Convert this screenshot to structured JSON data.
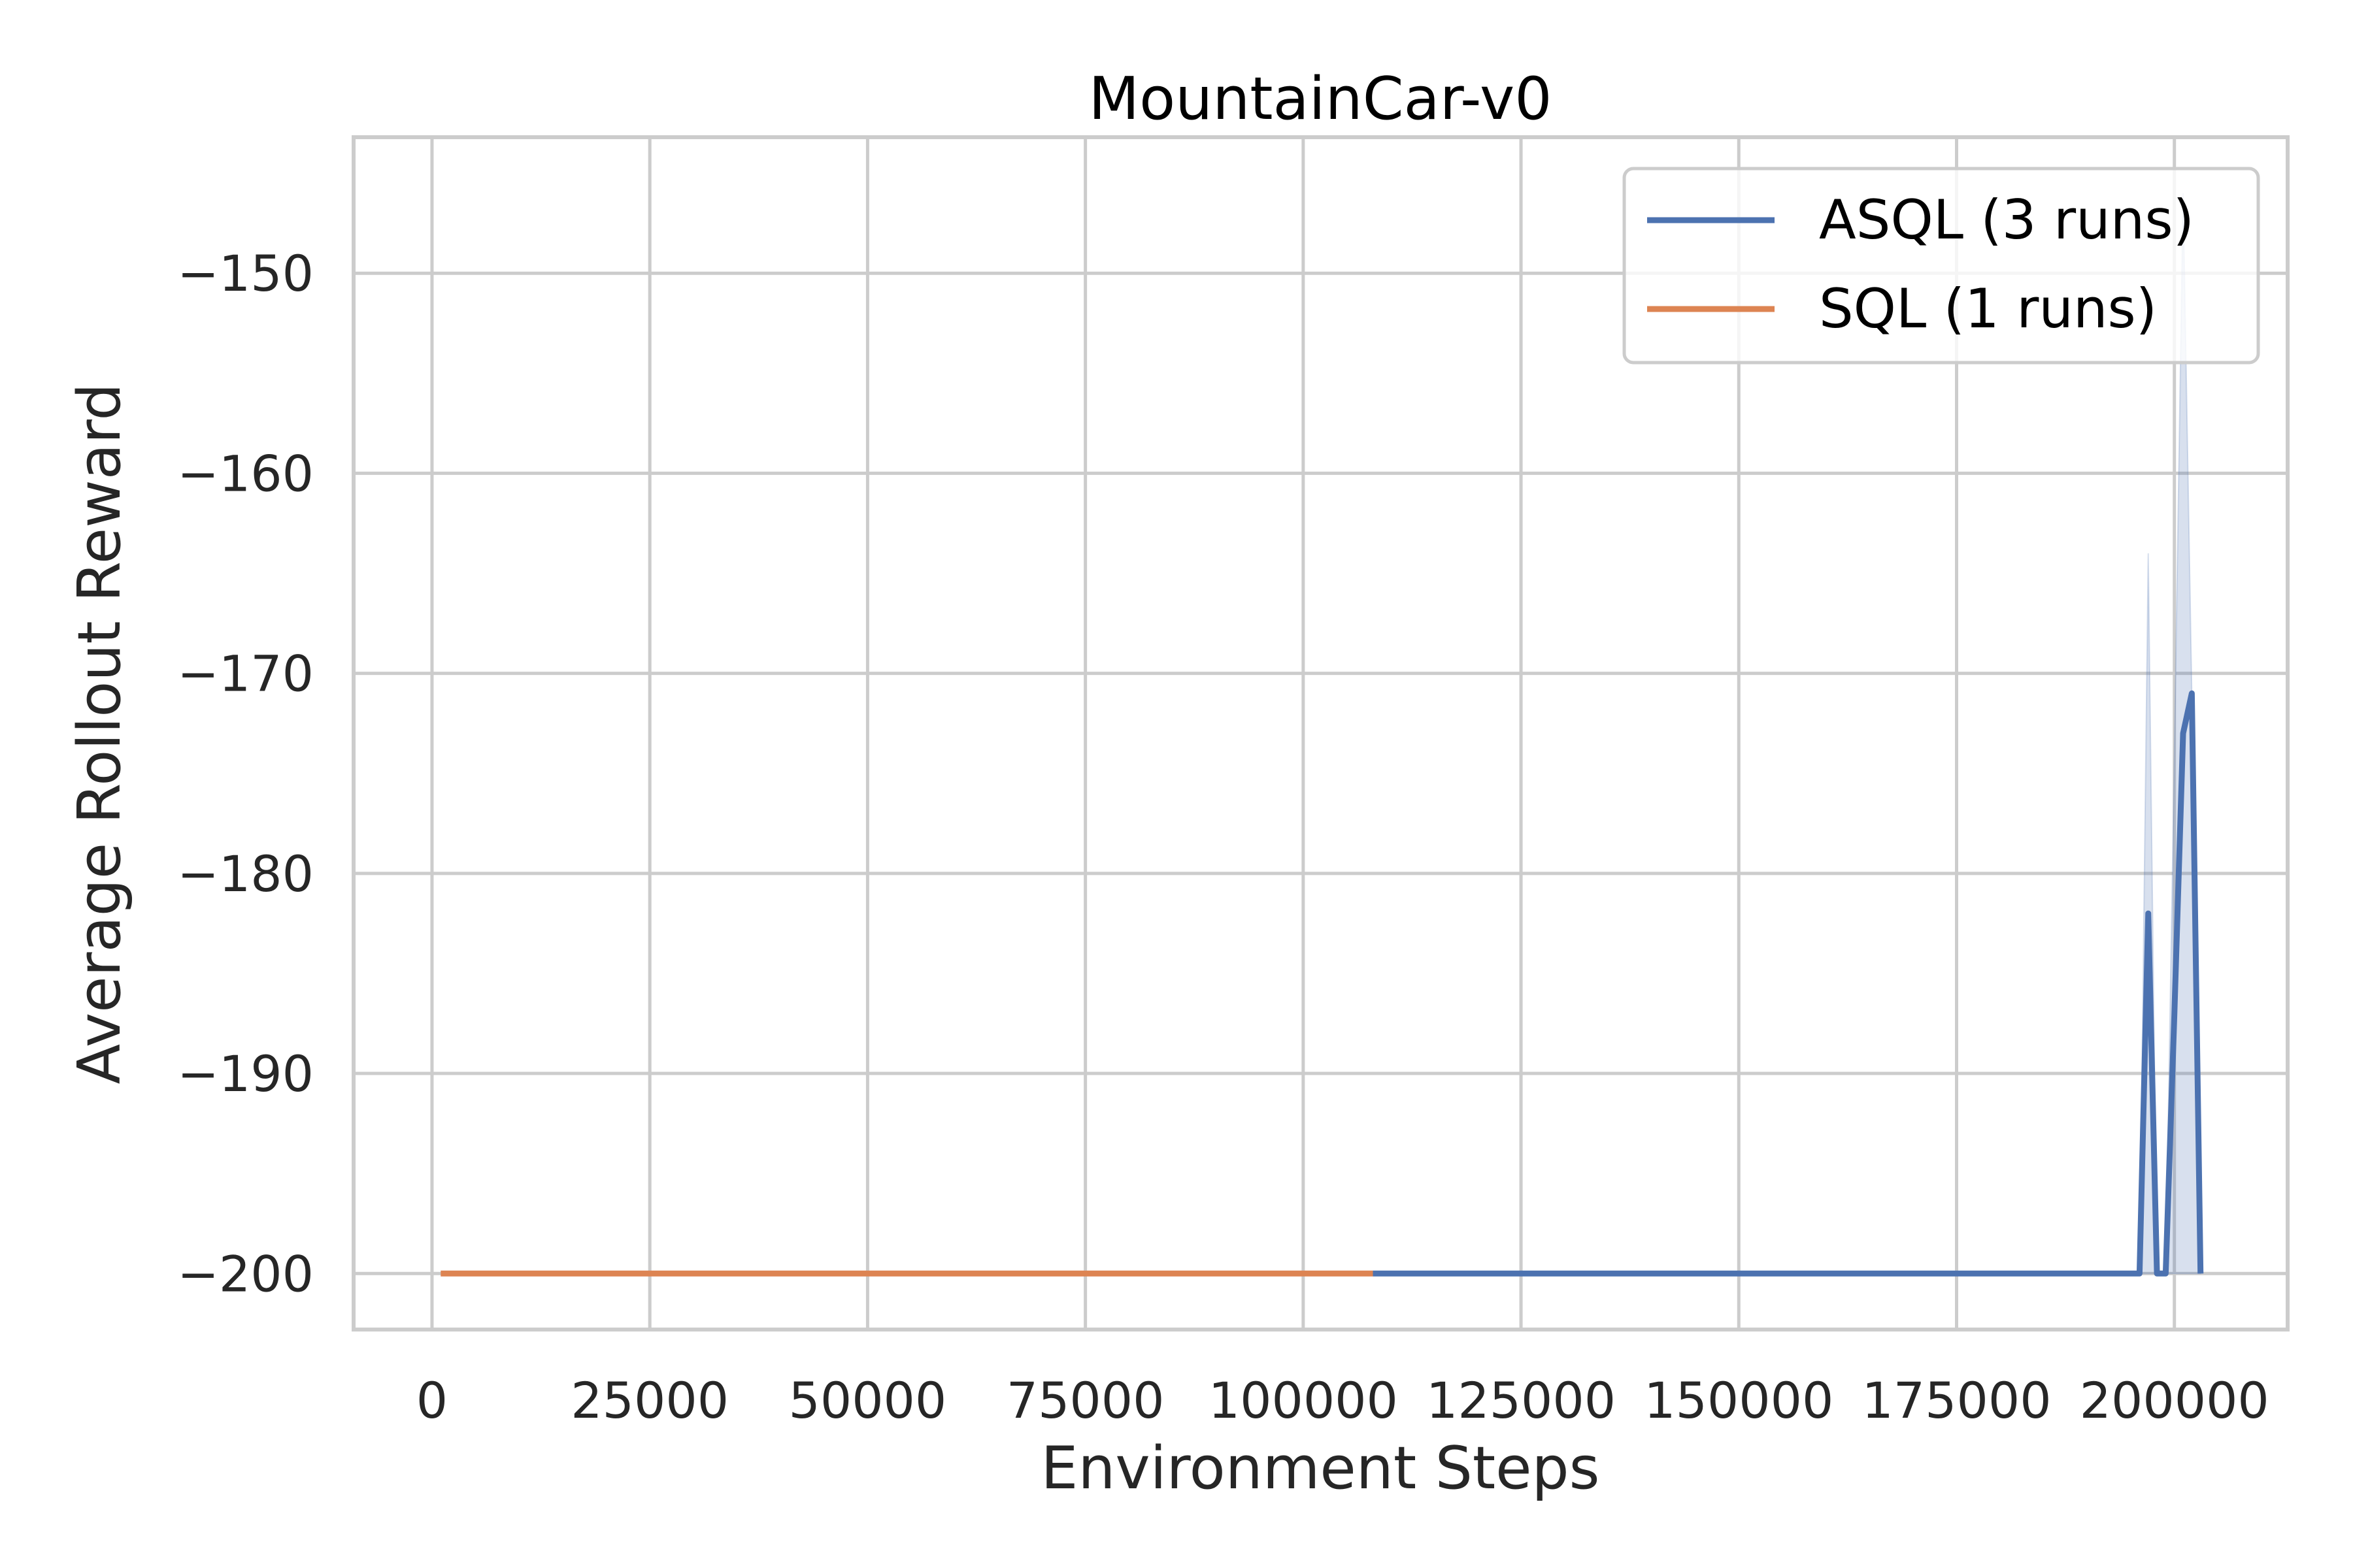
{
  "chart_data": {
    "type": "line",
    "title": "MountainCar-v0",
    "xlabel": "Environment Steps",
    "ylabel": "Average Rollout Reward",
    "xlim": [
      -9000,
      213000
    ],
    "ylim": [
      -202.8,
      -143.2
    ],
    "xticks": [
      0,
      25000,
      50000,
      75000,
      100000,
      125000,
      150000,
      175000,
      200000
    ],
    "xtick_labels": [
      "0",
      "25000",
      "50000",
      "75000",
      "100000",
      "125000",
      "150000",
      "175000",
      "200000"
    ],
    "yticks": [
      -150,
      -160,
      -170,
      -180,
      -190,
      -200
    ],
    "ytick_labels": [
      "−150",
      "−160",
      "−170",
      "−180",
      "−190",
      "−200"
    ],
    "grid": true,
    "legend_position": "upper right",
    "series": [
      {
        "name": "ASQL (3 runs)",
        "color": "#4c72b0",
        "x": [
          108000,
          196000,
          197000,
          198000,
          199000,
          200000,
          201000,
          202000,
          203000
        ],
        "y": [
          -200,
          -200,
          -182,
          -200,
          -200,
          -187,
          -173,
          -171,
          -200
        ],
        "band_lower": [
          -200,
          -200,
          -200,
          -200,
          -200,
          -200,
          -200,
          -200,
          -200
        ],
        "band_upper": [
          -200,
          -200,
          -164,
          -200,
          -200,
          -174,
          -146,
          -171,
          -200
        ]
      },
      {
        "name": "SQL (1 runs)",
        "color": "#dd8452",
        "x": [
          1000,
          108000
        ],
        "y": [
          -200,
          -200
        ]
      }
    ]
  }
}
